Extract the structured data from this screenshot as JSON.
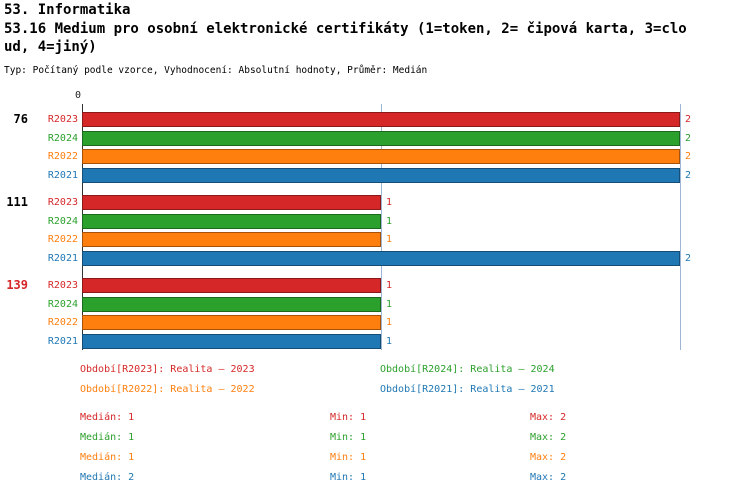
{
  "header": {
    "line1": "53. Informatika",
    "line2": "53.16 Medium pro osobní elektronické certifikáty (1=token, 2= čipová karta, 3=clo",
    "line3": "ud, 4=jiný)",
    "meta": "Typ: Počítaný podle vzorce, Vyhodnocení: Absolutní hodnoty, Průměr: Medián"
  },
  "chart_data": {
    "type": "bar",
    "orientation": "horizontal",
    "x_axis": {
      "min": 0,
      "max": 2,
      "origin_tick": "0",
      "gridlines_at": [
        1,
        2
      ]
    },
    "series": [
      {
        "key": "R2023",
        "label": "R2023",
        "color": "#d62728",
        "legend": "Období[R2023]: Realita – 2023",
        "stats": {
          "median": "Medián: 1",
          "min": "Min: 1",
          "max": "Max: 2"
        }
      },
      {
        "key": "R2024",
        "label": "R2024",
        "color": "#2ca02c",
        "legend": "Období[R2024]: Realita – 2024",
        "stats": {
          "median": "Medián: 1",
          "min": "Min: 1",
          "max": "Max: 2"
        }
      },
      {
        "key": "R2022",
        "label": "R2022",
        "color": "#ff7f0e",
        "legend": "Období[R2022]: Realita – 2022",
        "stats": {
          "median": "Medián: 1",
          "min": "Min: 1",
          "max": "Max: 2"
        }
      },
      {
        "key": "R2021",
        "label": "R2021",
        "color": "#1f77b4",
        "legend": "Období[R2021]: Realita – 2021",
        "stats": {
          "median": "Medián: 2",
          "min": "Min: 1",
          "max": "Max: 2"
        }
      }
    ],
    "groups": [
      {
        "label": "76",
        "label_color": "#000000",
        "values": [
          2,
          2,
          2,
          2
        ]
      },
      {
        "label": "111",
        "label_color": "#000000",
        "values": [
          1,
          1,
          1,
          2
        ]
      },
      {
        "label": "139",
        "label_color": "#d62728",
        "values": [
          1,
          1,
          1,
          1
        ]
      }
    ]
  }
}
